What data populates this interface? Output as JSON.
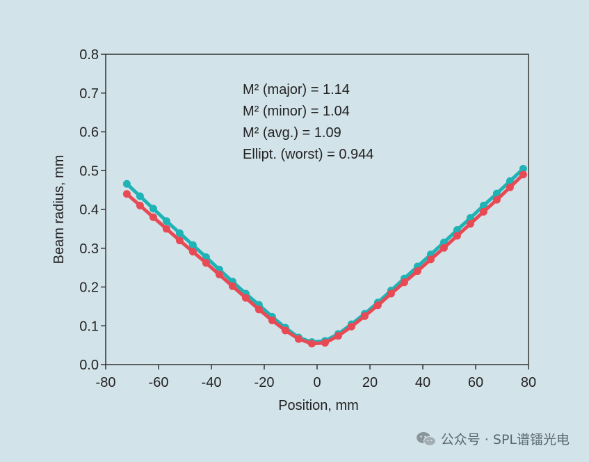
{
  "chart_data": {
    "type": "line",
    "xlabel": "Position, mm",
    "ylabel": "Beam radius, mm",
    "xlim": [
      -80,
      80
    ],
    "ylim": [
      0.0,
      0.8
    ],
    "xticks": [
      -80,
      -60,
      -40,
      -20,
      0,
      20,
      40,
      60,
      80
    ],
    "xtick_labels": [
      "-80",
      "-60",
      "-40",
      "-20",
      "0",
      "20",
      "40",
      "60",
      "80"
    ],
    "yticks": [
      0.0,
      0.1,
      0.2,
      0.3,
      0.4,
      0.5,
      0.6,
      0.7,
      0.8
    ],
    "ytick_labels": [
      "0.0",
      "0.1",
      "0.2",
      "0.3",
      "0.4",
      "0.5",
      "0.6",
      "0.7",
      "0.8"
    ],
    "grid": false,
    "x": [
      -72,
      -67,
      -62,
      -57,
      -52,
      -47,
      -42,
      -37,
      -32,
      -27,
      -22,
      -17,
      -12,
      -7,
      -2,
      3,
      8,
      13,
      18,
      23,
      28,
      33,
      38,
      43,
      48,
      53,
      58,
      63,
      68,
      73,
      78
    ],
    "series": [
      {
        "color": "#1fb3b5",
        "values": [
          0.466,
          0.434,
          0.402,
          0.37,
          0.339,
          0.308,
          0.277,
          0.245,
          0.214,
          0.183,
          0.154,
          0.123,
          0.095,
          0.07,
          0.058,
          0.061,
          0.079,
          0.104,
          0.131,
          0.16,
          0.191,
          0.222,
          0.253,
          0.284,
          0.315,
          0.347,
          0.378,
          0.41,
          0.441,
          0.473,
          0.505
        ]
      },
      {
        "color": "#e84a55",
        "values": [
          0.44,
          0.41,
          0.38,
          0.35,
          0.32,
          0.291,
          0.262,
          0.232,
          0.202,
          0.172,
          0.142,
          0.114,
          0.088,
          0.066,
          0.054,
          0.056,
          0.074,
          0.098,
          0.125,
          0.153,
          0.183,
          0.212,
          0.241,
          0.271,
          0.301,
          0.332,
          0.363,
          0.394,
          0.425,
          0.457,
          0.49
        ]
      }
    ],
    "annotations": [
      "M² (major) = 1.14",
      "M² (minor) = 1.04",
      "M² (avg.) = 1.09",
      "Ellipt. (worst) = 0.944"
    ]
  },
  "watermark": {
    "icon": "wechat-icon",
    "text": "公众号 · SPL谱镭光电"
  }
}
